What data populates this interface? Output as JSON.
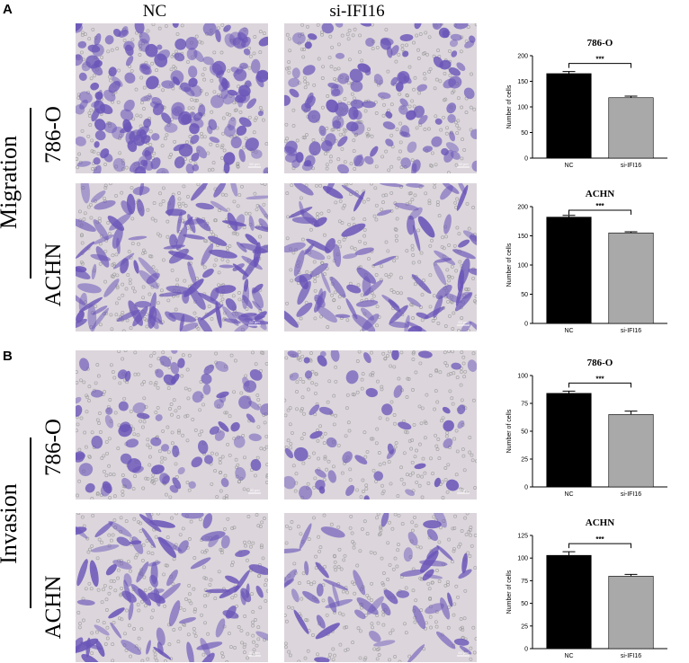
{
  "figure": {
    "panel_a": "A",
    "panel_b": "B",
    "columns": {
      "nc": "NC",
      "si": "si-IFI16"
    },
    "groups": {
      "migration": "Migration",
      "invasion": "Invasion"
    },
    "cell_lines": {
      "l786": "786-O",
      "achn": "ACHN"
    },
    "micro_colors": {
      "background": "#dcd6dc",
      "cell": "#6a55b8",
      "pore": "#9a9a9a"
    },
    "scale_bar_label": "50 μm"
  },
  "chart_data": [
    {
      "type": "bar",
      "title": "786-O",
      "categories": [
        "NC",
        "si-IFI16"
      ],
      "values": [
        165,
        118
      ],
      "errors": [
        4,
        3
      ],
      "ylabel": "Number of cells",
      "ylim": [
        0,
        200
      ],
      "yticks": [
        "0",
        "50",
        "100",
        "150",
        "200"
      ],
      "significance": "***",
      "colors": [
        "#000000",
        "#a9a9a9"
      ]
    },
    {
      "type": "bar",
      "title": "ACHN",
      "categories": [
        "NC",
        "si-IFI16"
      ],
      "values": [
        182,
        155
      ],
      "errors": [
        3,
        2
      ],
      "ylabel": "Number of cells",
      "ylim": [
        0,
        200
      ],
      "yticks": [
        "0",
        "50",
        "100",
        "150",
        "200"
      ],
      "significance": "***",
      "colors": [
        "#000000",
        "#a9a9a9"
      ]
    },
    {
      "type": "bar",
      "title": "786-O",
      "categories": [
        "NC",
        "si-IFI16"
      ],
      "values": [
        84,
        65
      ],
      "errors": [
        2,
        3
      ],
      "ylabel": "Number of cells",
      "ylim": [
        0,
        100
      ],
      "yticks": [
        "0",
        "25",
        "50",
        "75",
        "100"
      ],
      "significance": "***",
      "colors": [
        "#000000",
        "#a9a9a9"
      ]
    },
    {
      "type": "bar",
      "title": "ACHN",
      "categories": [
        "NC",
        "si-IFI16"
      ],
      "values": [
        103,
        80
      ],
      "errors": [
        4,
        2
      ],
      "ylabel": "Number of cells",
      "ylim": [
        0,
        125
      ],
      "yticks": [
        "0",
        "25",
        "50",
        "75",
        "100",
        "125"
      ],
      "significance": "***",
      "colors": [
        "#000000",
        "#a9a9a9"
      ]
    }
  ]
}
